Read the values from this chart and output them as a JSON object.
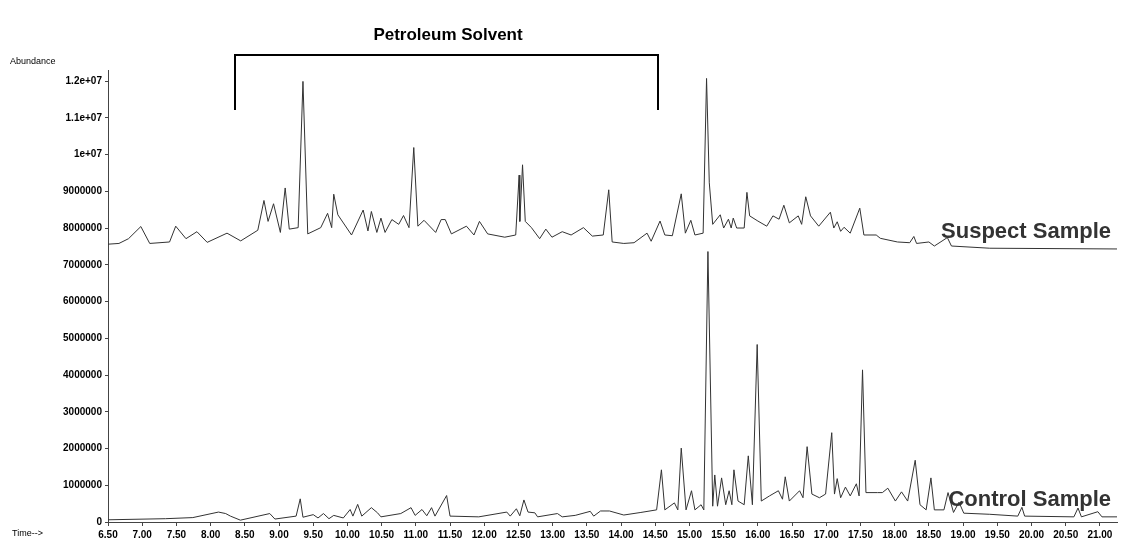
{
  "chart_data": {
    "type": "line",
    "xlabel": "Time-->",
    "ylabel": "Abundance",
    "xlim": [
      6.5,
      21.25
    ],
    "xticks": [
      {
        "value": 6.5,
        "label": "6.50"
      },
      {
        "value": 7,
        "label": "7.00"
      },
      {
        "value": 7.5,
        "label": "7.50"
      },
      {
        "value": 8,
        "label": "8.00"
      },
      {
        "value": 8.5,
        "label": "8.50"
      },
      {
        "value": 9,
        "label": "9.00"
      },
      {
        "value": 9.5,
        "label": "9.50"
      },
      {
        "value": 10,
        "label": "10.00"
      },
      {
        "value": 10.5,
        "label": "10.50"
      },
      {
        "value": 11,
        "label": "11.00"
      },
      {
        "value": 11.5,
        "label": "11.50"
      },
      {
        "value": 12,
        "label": "12.00"
      },
      {
        "value": 12.5,
        "label": "12.50"
      },
      {
        "value": 13,
        "label": "13.00"
      },
      {
        "value": 13.5,
        "label": "13.50"
      },
      {
        "value": 14,
        "label": "14.00"
      },
      {
        "value": 14.5,
        "label": "14.50"
      },
      {
        "value": 15,
        "label": "15.00"
      },
      {
        "value": 15.5,
        "label": "15.50"
      },
      {
        "value": 16,
        "label": "16.00"
      },
      {
        "value": 16.5,
        "label": "16.50"
      },
      {
        "value": 17,
        "label": "17.00"
      },
      {
        "value": 17.5,
        "label": "17.50"
      },
      {
        "value": 18,
        "label": "18.00"
      },
      {
        "value": 18.5,
        "label": "18.50"
      },
      {
        "value": 19,
        "label": "19.00"
      },
      {
        "value": 19.5,
        "label": "19.50"
      },
      {
        "value": 20,
        "label": "20.00"
      },
      {
        "value": 20.5,
        "label": "20.50"
      },
      {
        "value": 21,
        "label": "21.00"
      }
    ],
    "ylim": [
      0,
      12300000
    ],
    "yticks": [
      0,
      1000000,
      2000000,
      3000000,
      4000000,
      5000000,
      6000000,
      7000000,
      8000000,
      9000000,
      {
        "value": 10000000,
        "label": "1e+07"
      },
      {
        "value": 11000000,
        "label": "1.1e+07"
      },
      {
        "value": 12000000,
        "label": "1.2e+07"
      }
    ],
    "grid": false,
    "legend": false,
    "marker": "none",
    "line_style": "solid",
    "annotations": [
      "Petroleum Solvent"
    ],
    "series": [
      {
        "name": "Suspect Sample",
        "color": "#333333",
        "x": [
          6.5,
          6.66,
          6.8,
          6.98,
          7.11,
          7.4,
          7.49,
          7.64,
          7.8,
          7.95,
          8.24,
          8.44,
          8.69,
          8.78,
          8.84,
          8.92,
          9.02,
          9.09,
          9.15,
          9.28,
          9.35,
          9.42,
          9.61,
          9.71,
          9.77,
          9.8,
          9.86,
          10.06,
          10.23,
          10.3,
          10.35,
          10.43,
          10.49,
          10.55,
          10.65,
          10.75,
          10.82,
          10.9,
          10.97,
          11.03,
          11.12,
          11.29,
          11.37,
          11.43,
          11.52,
          11.74,
          11.85,
          11.93,
          12.05,
          12.3,
          12.46,
          12.51,
          12.52,
          12.56,
          12.6,
          12.69,
          12.81,
          12.9,
          12.99,
          13.14,
          13.27,
          13.45,
          13.58,
          13.74,
          13.82,
          13.87,
          14.04,
          14.19,
          14.38,
          14.44,
          14.57,
          14.64,
          14.75,
          14.88,
          14.94,
          15.02,
          15.08,
          15.2,
          15.25,
          15.29,
          15.34,
          15.45,
          15.5,
          15.57,
          15.61,
          15.64,
          15.69,
          15.8,
          15.84,
          15.88,
          16,
          16.13,
          16.22,
          16.31,
          16.38,
          16.46,
          16.59,
          16.64,
          16.7,
          16.77,
          16.89,
          17.06,
          17.11,
          17.16,
          17.21,
          17.26,
          17.35,
          17.49,
          17.55,
          17.73,
          17.79,
          18.04,
          18.22,
          18.28,
          18.32,
          18.5,
          18.58,
          18.77,
          18.83,
          19.39,
          21.25
        ],
        "values": [
          7560000,
          7580000,
          7710000,
          8040000,
          7580000,
          7620000,
          8050000,
          7710000,
          7900000,
          7610000,
          7860000,
          7650000,
          7940000,
          8750000,
          8180000,
          8660000,
          7880000,
          9090000,
          7970000,
          8010000,
          11990000,
          7840000,
          8010000,
          8400000,
          8010000,
          8920000,
          8360000,
          7810000,
          8490000,
          7920000,
          8450000,
          7880000,
          8270000,
          7880000,
          8230000,
          8100000,
          8340000,
          8010000,
          10190000,
          8050000,
          8210000,
          7880000,
          8230000,
          8230000,
          7840000,
          8050000,
          7810000,
          8180000,
          7840000,
          7750000,
          7810000,
          9440000,
          8180000,
          9720000,
          8180000,
          8010000,
          7710000,
          7970000,
          7750000,
          7900000,
          7810000,
          8010000,
          7780000,
          7810000,
          9040000,
          7620000,
          7580000,
          7600000,
          7860000,
          7640000,
          8190000,
          7810000,
          7790000,
          8930000,
          7860000,
          8210000,
          7810000,
          7860000,
          12070000,
          9230000,
          8100000,
          8360000,
          8000000,
          8240000,
          8000000,
          8270000,
          8000000,
          8000000,
          8970000,
          8330000,
          8190000,
          8050000,
          8330000,
          8240000,
          8620000,
          8140000,
          8330000,
          8100000,
          8850000,
          8330000,
          8050000,
          8430000,
          8000000,
          8170000,
          7910000,
          8020000,
          7860000,
          8540000,
          7810000,
          7810000,
          7720000,
          7620000,
          7600000,
          7770000,
          7580000,
          7620000,
          7510000,
          7740000,
          7510000,
          7450000,
          7430000
        ]
      },
      {
        "name": "Control Sample",
        "color": "#333333",
        "x": [
          6.5,
          7.34,
          7.74,
          8.115,
          8.22,
          8.29,
          8.435,
          8.865,
          8.94,
          9.25,
          9.31,
          9.35,
          9.5,
          9.57,
          9.65,
          9.73,
          9.8,
          9.94,
          10.04,
          10.08,
          10.15,
          10.21,
          10.35,
          10.44,
          10.49,
          10.78,
          10.93,
          10.99,
          11.09,
          11.16,
          11.23,
          11.28,
          11.45,
          11.5,
          11.92,
          12.33,
          12.38,
          12.47,
          12.52,
          12.58,
          12.64,
          12.74,
          12.78,
          13.07,
          13.14,
          13.33,
          13.55,
          13.6,
          13.7,
          13.83,
          14.04,
          14.29,
          14.52,
          14.59,
          14.64,
          14.78,
          14.83,
          14.88,
          14.95,
          15.03,
          15.08,
          15.17,
          15.21,
          15.27,
          15.34,
          15.37,
          15.41,
          15.47,
          15.53,
          15.58,
          15.62,
          15.65,
          15.71,
          15.8,
          15.86,
          15.92,
          15.99,
          16.05,
          16.17,
          16.3,
          16.36,
          16.4,
          16.46,
          16.61,
          16.66,
          16.72,
          16.79,
          16.9,
          16.99,
          17.08,
          17.12,
          17.16,
          17.21,
          17.28,
          17.35,
          17.44,
          17.48,
          17.53,
          17.58,
          17.75,
          17.82,
          17.9,
          18.01,
          18.1,
          18.19,
          18.3,
          18.37,
          18.46,
          18.53,
          18.58,
          18.72,
          18.78,
          18.86,
          18.94,
          19.01,
          19.39,
          19.8,
          19.86,
          19.9,
          20.62,
          20.68,
          20.73,
          20.97,
          21.03,
          21.25
        ],
        "values": [
          60000,
          90000,
          120000,
          270000,
          230000,
          160000,
          50000,
          230000,
          80000,
          160000,
          630000,
          130000,
          200000,
          110000,
          230000,
          90000,
          180000,
          110000,
          340000,
          160000,
          480000,
          160000,
          390000,
          250000,
          140000,
          230000,
          390000,
          180000,
          340000,
          170000,
          390000,
          160000,
          720000,
          160000,
          140000,
          270000,
          160000,
          360000,
          170000,
          600000,
          270000,
          250000,
          140000,
          230000,
          140000,
          180000,
          290000,
          160000,
          300000,
          300000,
          190000,
          260000,
          330000,
          1420000,
          330000,
          520000,
          330000,
          2010000,
          330000,
          850000,
          330000,
          470000,
          330000,
          7360000,
          430000,
          1280000,
          430000,
          1200000,
          470000,
          850000,
          470000,
          1420000,
          570000,
          470000,
          1800000,
          470000,
          4830000,
          570000,
          710000,
          850000,
          620000,
          1230000,
          570000,
          850000,
          660000,
          2050000,
          760000,
          660000,
          760000,
          2430000,
          760000,
          1180000,
          660000,
          950000,
          710000,
          1040000,
          710000,
          4140000,
          800000,
          800000,
          800000,
          920000,
          570000,
          820000,
          570000,
          1680000,
          470000,
          330000,
          1200000,
          330000,
          330000,
          800000,
          260000,
          540000,
          240000,
          210000,
          160000,
          400000,
          160000,
          140000,
          380000,
          140000,
          280000,
          140000,
          140000
        ]
      }
    ]
  }
}
